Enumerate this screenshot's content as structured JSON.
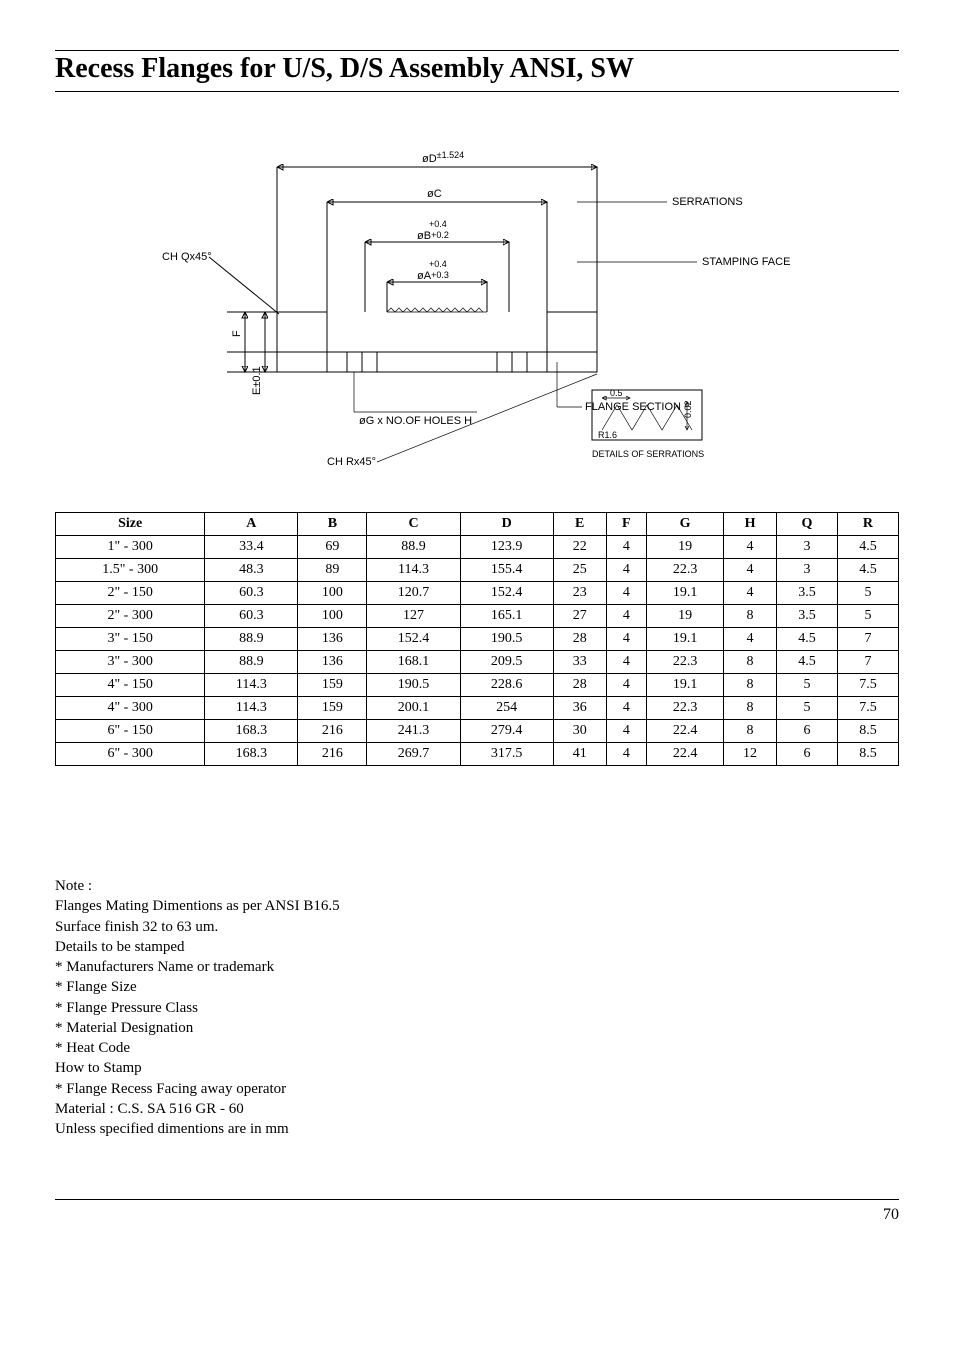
{
  "title": "Recess Flanges for U/S, D/S Assembly ANSI, SW",
  "diagram": {
    "labels": {
      "od": "øD",
      "od_tol": "±1.524",
      "oc": "øC",
      "ob": "øB",
      "ob_tol_top": "+0.4",
      "ob_tol_bot": "+0.2",
      "oa": "øA",
      "oa_tol_top": "+0.4",
      "oa_tol_bot": "+0.3",
      "chq": "CH Qx45°",
      "chr": "CH Rx45°",
      "f": "F",
      "e": "E±0.1",
      "og": "øG x NO.OF HOLES H",
      "serrations": "SERRATIONS",
      "stamping": "STAMPING FACE",
      "flange_section": "FLANGE SECTION",
      "detail_title": "DETAILS OF SERRATIONS",
      "d05": "0.5",
      "d002": "0.02",
      "r16": "R1.6"
    }
  },
  "table": {
    "columns": [
      "Size",
      "A",
      "B",
      "C",
      "D",
      "E",
      "F",
      "G",
      "H",
      "Q",
      "R"
    ],
    "rows": [
      [
        "1\" - 300",
        "33.4",
        "69",
        "88.9",
        "123.9",
        "22",
        "4",
        "19",
        "4",
        "3",
        "4.5"
      ],
      [
        "1.5\"  - 300",
        "48.3",
        "89",
        "114.3",
        "155.4",
        "25",
        "4",
        "22.3",
        "4",
        "3",
        "4.5"
      ],
      [
        "2\" - 150",
        "60.3",
        "100",
        "120.7",
        "152.4",
        "23",
        "4",
        "19.1",
        "4",
        "3.5",
        "5"
      ],
      [
        "2\" - 300",
        "60.3",
        "100",
        "127",
        "165.1",
        "27",
        "4",
        "19",
        "8",
        "3.5",
        "5"
      ],
      [
        "3\" - 150",
        "88.9",
        "136",
        "152.4",
        "190.5",
        "28",
        "4",
        "19.1",
        "4",
        "4.5",
        "7"
      ],
      [
        "3\" - 300",
        "88.9",
        "136",
        "168.1",
        "209.5",
        "33",
        "4",
        "22.3",
        "8",
        "4.5",
        "7"
      ],
      [
        "4\" - 150",
        "114.3",
        "159",
        "190.5",
        "228.6",
        "28",
        "4",
        "19.1",
        "8",
        "5",
        "7.5"
      ],
      [
        "4\" - 300",
        "114.3",
        "159",
        "200.1",
        "254",
        "36",
        "4",
        "22.3",
        "8",
        "5",
        "7.5"
      ],
      [
        "6\" - 150",
        "168.3",
        "216",
        "241.3",
        "279.4",
        "30",
        "4",
        "22.4",
        "8",
        "6",
        "8.5"
      ],
      [
        "6\" - 300",
        "168.3",
        "216",
        "269.7",
        "317.5",
        "41",
        "4",
        "22.4",
        "12",
        "6",
        "8.5"
      ]
    ]
  },
  "notes": {
    "heading": "Note :",
    "lines": [
      "Flanges Mating Dimentions as per ANSI B16.5",
      "Surface finish 32 to 63 um.",
      "Details to be stamped",
      "* Manufacturers Name or trademark",
      "* Flange Size",
      "* Flange Pressure Class",
      "* Material Designation",
      "* Heat Code",
      "How to Stamp",
      "* Flange Recess Facing away operator",
      "Material : C.S. SA 516 GR - 60",
      "Unless specified dimentions are in mm"
    ]
  },
  "page_number": "70"
}
